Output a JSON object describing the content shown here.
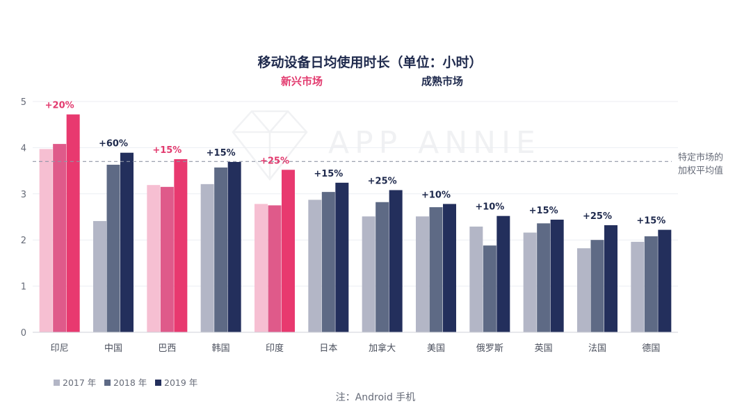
{
  "chart_data": {
    "type": "bar",
    "title": "移动设备日均使用时长（单位：小时）",
    "group_labels": {
      "emerging": "新兴市场",
      "mature": "成熟市场"
    },
    "categories": [
      "印尼",
      "中国",
      "巴西",
      "韩国",
      "印度",
      "日本",
      "加拿大",
      "美国",
      "俄罗斯",
      "英国",
      "法国",
      "德国"
    ],
    "market_group": [
      "emerging",
      "mature",
      "emerging",
      "mature",
      "emerging",
      "mature",
      "mature",
      "mature",
      "mature",
      "mature",
      "mature",
      "mature"
    ],
    "series": [
      {
        "name": "2017 年",
        "values": [
          3.97,
          2.41,
          3.19,
          3.21,
          2.78,
          2.87,
          2.51,
          2.51,
          2.29,
          2.16,
          1.82,
          1.96
        ]
      },
      {
        "name": "2018 年",
        "values": [
          4.08,
          3.63,
          3.15,
          3.57,
          2.75,
          3.04,
          2.82,
          2.71,
          1.88,
          2.36,
          2.0,
          2.08
        ]
      },
      {
        "name": "2019 年",
        "values": [
          4.72,
          3.89,
          3.75,
          3.69,
          3.52,
          3.24,
          3.08,
          2.78,
          2.52,
          2.44,
          2.32,
          2.22
        ]
      }
    ],
    "growth_labels": [
      "+20%",
      "+60%",
      "+15%",
      "+15%",
      "+25%",
      "+15%",
      "+25%",
      "+10%",
      "+10%",
      "+15%",
      "+25%",
      "+15%"
    ],
    "reference_line": {
      "value": 3.7,
      "label_lines": [
        "特定市场的",
        "加权平均值"
      ]
    },
    "ylim": [
      0,
      5
    ],
    "yticks": [
      0,
      1,
      2,
      3,
      4,
      5
    ],
    "grid": true,
    "legend_position": "bottom-left",
    "watermark": "APP ANNIE",
    "note": "注：Android 手机",
    "colors": {
      "emerging": [
        "#f6bfd2",
        "#df5a8a",
        "#e8396f"
      ],
      "mature": [
        "#b3b6c6",
        "#5e6a85",
        "#232f5c"
      ],
      "emerging_text": "#e23a6e",
      "mature_text": "#1f2a4d",
      "legend": [
        "#b3b6c6",
        "#5e6a85",
        "#232f5c"
      ]
    }
  }
}
